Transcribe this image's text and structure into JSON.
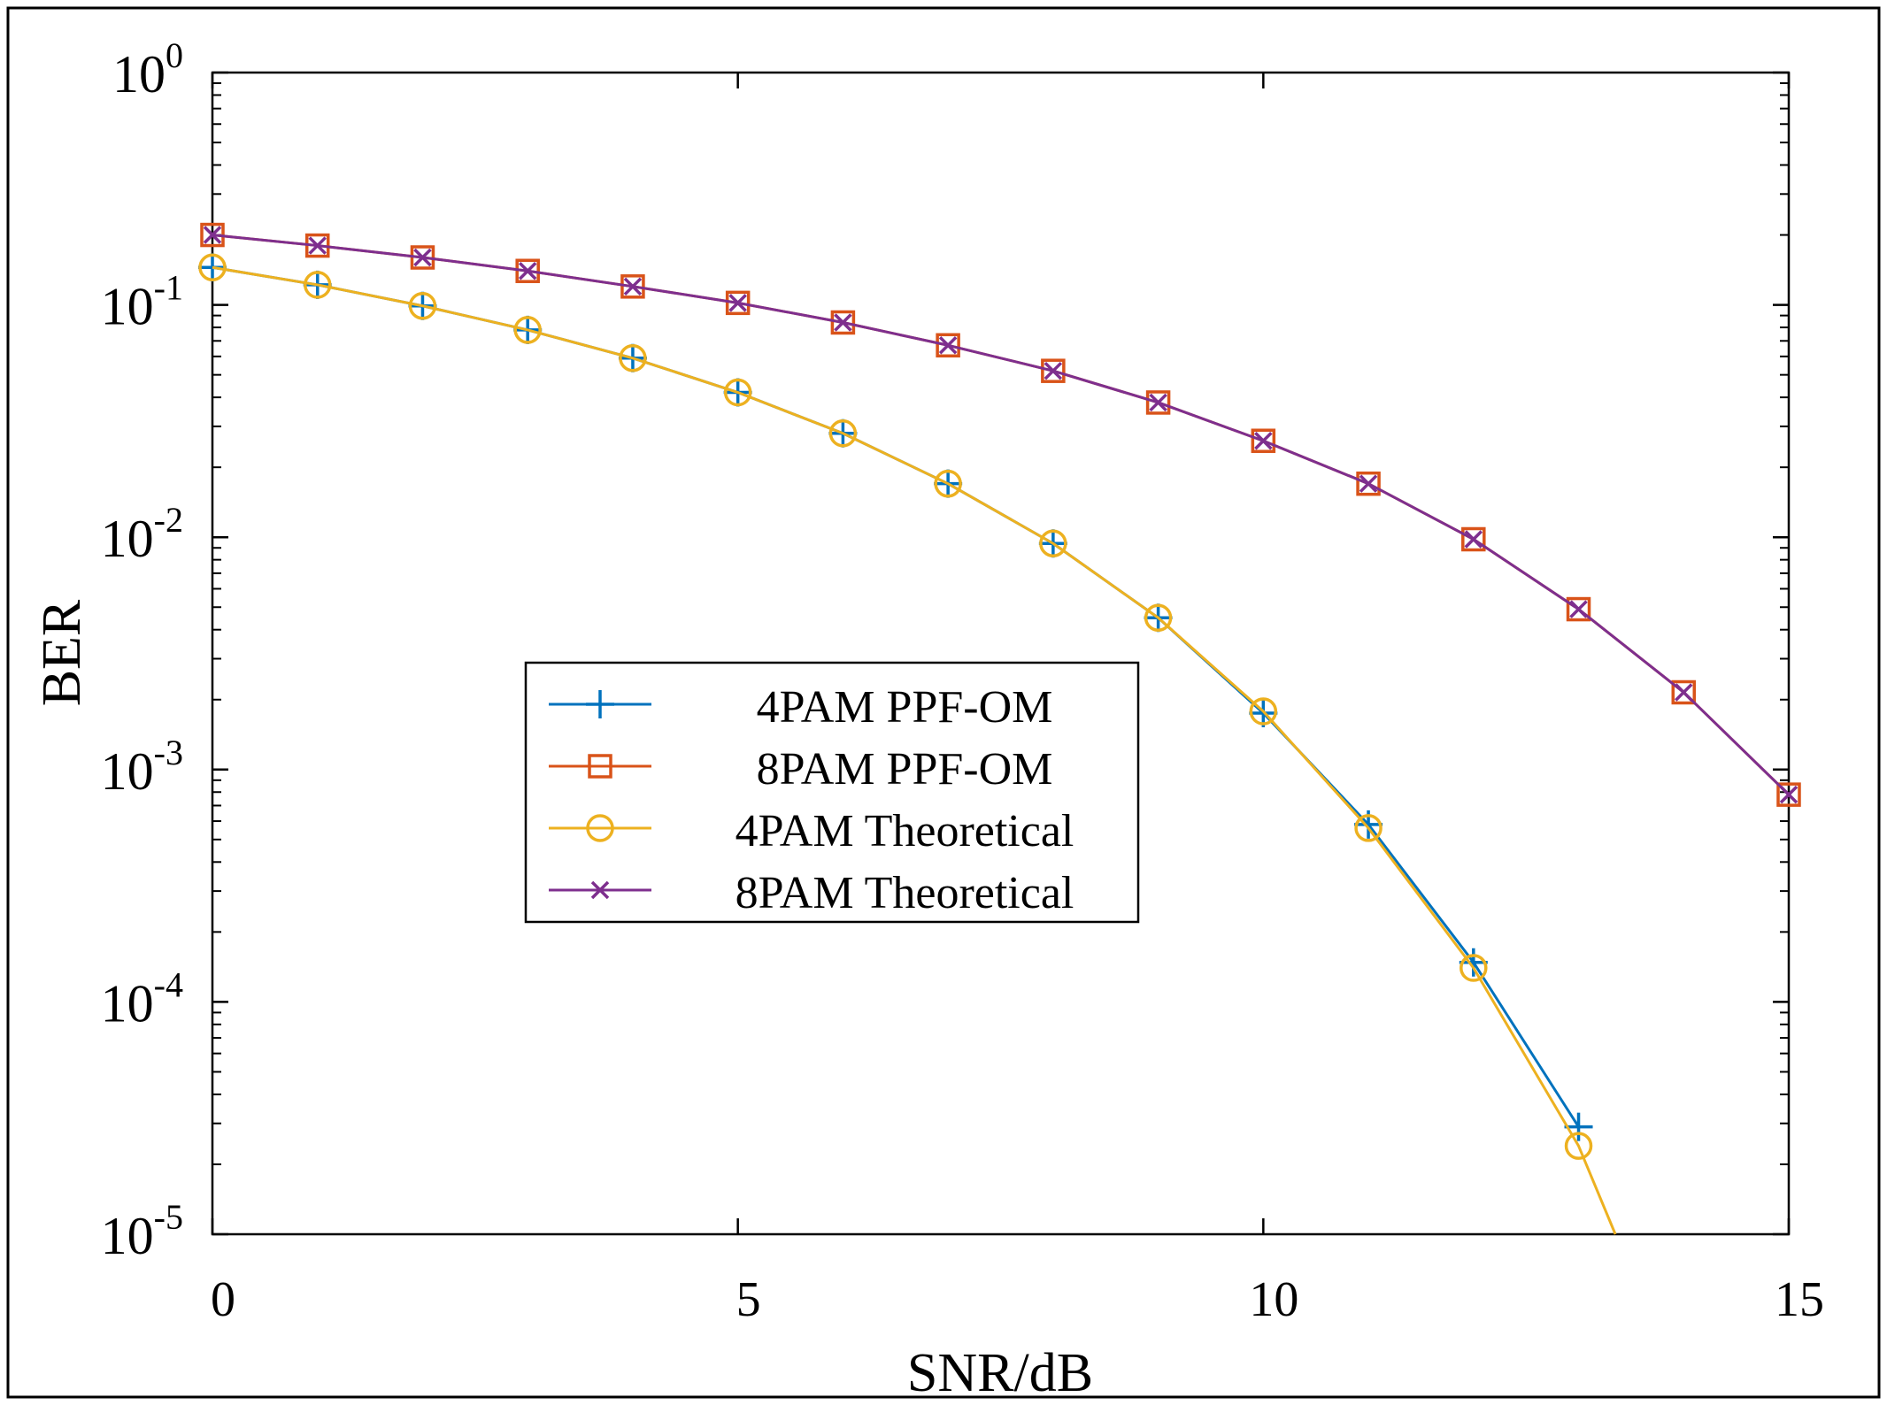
{
  "chart_data": {
    "type": "line",
    "title": "",
    "xlabel": "SNR/dB",
    "ylabel": "BER",
    "xlim": [
      0,
      15
    ],
    "ylim": [
      1e-05,
      1
    ],
    "yscale": "log",
    "grid": false,
    "legend_position": "center",
    "x_ticks": [
      {
        "value": 0,
        "label": "0"
      },
      {
        "value": 5,
        "label": "5"
      },
      {
        "value": 10,
        "label": "10"
      },
      {
        "value": 15,
        "label": "15"
      }
    ],
    "y_ticks": [
      {
        "value": 1,
        "base": "10",
        "exp": "0"
      },
      {
        "value": 0.1,
        "base": "10",
        "exp": "-1"
      },
      {
        "value": 0.01,
        "base": "10",
        "exp": "-2"
      },
      {
        "value": 0.001,
        "base": "10",
        "exp": "-3"
      },
      {
        "value": 0.0001,
        "base": "10",
        "exp": "-4"
      },
      {
        "value": 1e-05,
        "base": "10",
        "exp": "-5"
      }
    ],
    "series": [
      {
        "name": "4PAM PPF-OM",
        "color": "#0072BD",
        "marker": "plus",
        "x": [
          0,
          1,
          2,
          3,
          4,
          5,
          6,
          7,
          8,
          9,
          10,
          11,
          12,
          13
        ],
        "values": [
          0.145,
          0.122,
          0.099,
          0.078,
          0.059,
          0.042,
          0.028,
          0.017,
          0.0094,
          0.0045,
          0.00175,
          0.00058,
          0.000148,
          2.9e-05
        ]
      },
      {
        "name": "8PAM PPF-OM",
        "color": "#D95319",
        "marker": "square",
        "x": [
          0,
          1,
          2,
          3,
          4,
          5,
          6,
          7,
          8,
          9,
          10,
          11,
          12,
          13,
          14,
          15
        ],
        "values": [
          0.2,
          0.18,
          0.16,
          0.14,
          0.12,
          0.102,
          0.084,
          0.067,
          0.052,
          0.038,
          0.026,
          0.017,
          0.0098,
          0.0049,
          0.00215,
          0.00078
        ]
      },
      {
        "name": "4PAM Theoretical",
        "color": "#EDB120",
        "marker": "circle",
        "x": [
          0,
          1,
          2,
          3,
          4,
          5,
          6,
          7,
          8,
          9,
          10,
          11,
          12,
          13,
          13.35
        ],
        "values": [
          0.145,
          0.122,
          0.099,
          0.078,
          0.059,
          0.042,
          0.028,
          0.017,
          0.0094,
          0.0045,
          0.00178,
          0.00056,
          0.00014,
          2.4e-05,
          1e-05
        ],
        "marker_count": 14
      },
      {
        "name": "8PAM Theoretical",
        "color": "#7E2F8E",
        "marker": "x",
        "x": [
          0,
          1,
          2,
          3,
          4,
          5,
          6,
          7,
          8,
          9,
          10,
          11,
          12,
          13,
          14,
          15
        ],
        "values": [
          0.2,
          0.18,
          0.16,
          0.14,
          0.12,
          0.102,
          0.084,
          0.067,
          0.052,
          0.038,
          0.026,
          0.017,
          0.0098,
          0.0049,
          0.00215,
          0.00078
        ]
      }
    ]
  }
}
